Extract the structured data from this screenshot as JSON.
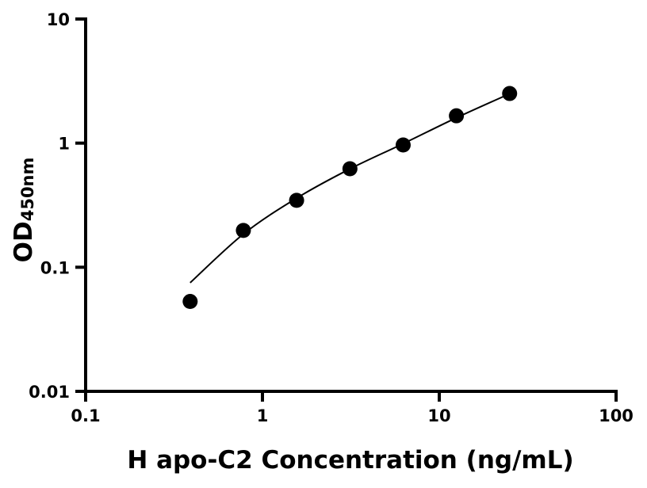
{
  "chart_data": {
    "type": "scatter",
    "title": "",
    "xlabel": "H apo-C2 Concentration (ng/mL)",
    "ylabel": "OD",
    "ylabel_subscript": "450nm",
    "xscale": "log",
    "yscale": "log",
    "xlim": [
      0.1,
      100
    ],
    "ylim": [
      0.01,
      10
    ],
    "xticks": [
      "0.1",
      "1",
      "10",
      "100"
    ],
    "yticks": [
      "0.01",
      "0.1",
      "1",
      "10"
    ],
    "grid": false,
    "legend": "none",
    "marker_color": "#000000",
    "series": [
      {
        "x": [
          0.39,
          0.78,
          1.56,
          3.125,
          6.25,
          12.5,
          25
        ],
        "y": [
          0.053,
          0.198,
          0.346,
          0.622,
          0.966,
          1.66,
          2.51
        ]
      }
    ],
    "fit_curve": {
      "x": [
        0.39,
        0.78,
        1.56,
        3.125,
        6.25,
        12.5,
        25
      ],
      "y": [
        0.075,
        0.185,
        0.36,
        0.62,
        0.99,
        1.6,
        2.5
      ]
    }
  }
}
